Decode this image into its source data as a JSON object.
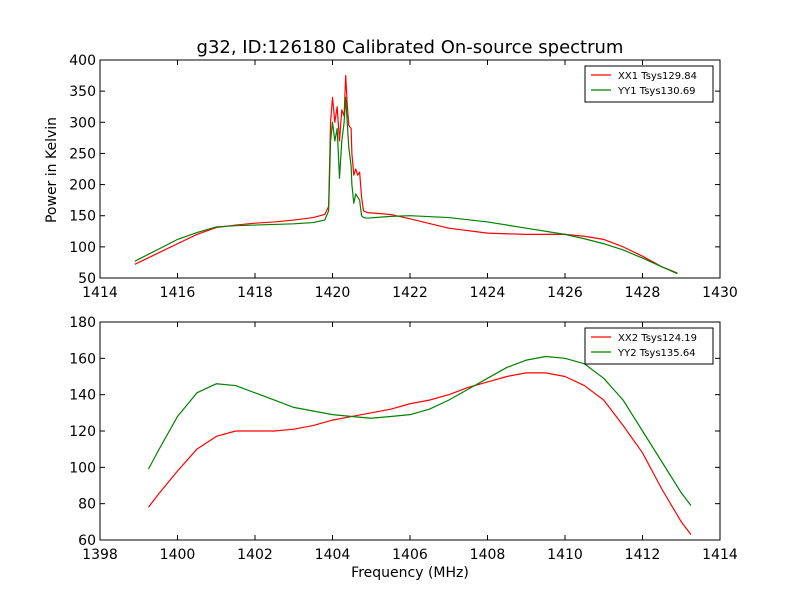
{
  "colors": {
    "red": "#ff0000",
    "green": "#008000"
  },
  "chart_data": [
    {
      "type": "line",
      "title": "g32, ID:126180 Calibrated On-source spectrum",
      "xlabel": "",
      "ylabel": "Power in Kelvin",
      "xlim": [
        1414,
        1430
      ],
      "ylim": [
        50,
        400
      ],
      "xticks": [
        "1414",
        "1416",
        "1418",
        "1420",
        "1422",
        "1424",
        "1426",
        "1428",
        "1430"
      ],
      "yticks": [
        "50",
        "100",
        "150",
        "200",
        "250",
        "300",
        "350",
        "400"
      ],
      "legend_position": "top-right",
      "series": [
        {
          "name": "XX1 Tsys129.84",
          "color": "#ff0000",
          "points": [
            [
              1414.9,
              72
            ],
            [
              1415.5,
              90
            ],
            [
              1416,
              105
            ],
            [
              1416.5,
              120
            ],
            [
              1417,
              131
            ],
            [
              1417.5,
              135
            ],
            [
              1418,
              138
            ],
            [
              1418.5,
              140
            ],
            [
              1419,
              143
            ],
            [
              1419.5,
              147
            ],
            [
              1419.8,
              152
            ],
            [
              1419.9,
              165
            ],
            [
              1419.95,
              300
            ],
            [
              1420.0,
              340
            ],
            [
              1420.06,
              300
            ],
            [
              1420.12,
              325
            ],
            [
              1420.18,
              270
            ],
            [
              1420.24,
              320
            ],
            [
              1420.3,
              310
            ],
            [
              1420.34,
              375
            ],
            [
              1420.38,
              330
            ],
            [
              1420.42,
              295
            ],
            [
              1420.48,
              290
            ],
            [
              1420.5,
              250
            ],
            [
              1420.55,
              215
            ],
            [
              1420.6,
              225
            ],
            [
              1420.65,
              215
            ],
            [
              1420.7,
              220
            ],
            [
              1420.75,
              180
            ],
            [
              1420.8,
              158
            ],
            [
              1420.9,
              155
            ],
            [
              1421.5,
              152
            ],
            [
              1422,
              145
            ],
            [
              1423,
              130
            ],
            [
              1424,
              122
            ],
            [
              1425,
              120
            ],
            [
              1426,
              120
            ],
            [
              1426.5,
              117
            ],
            [
              1427,
              112
            ],
            [
              1427.5,
              100
            ],
            [
              1428,
              85
            ],
            [
              1428.5,
              68
            ],
            [
              1428.9,
              58
            ]
          ]
        },
        {
          "name": "YY1 Tsys130.69",
          "color": "#008000",
          "points": [
            [
              1414.9,
              77
            ],
            [
              1415.5,
              96
            ],
            [
              1416,
              112
            ],
            [
              1416.5,
              123
            ],
            [
              1417,
              132
            ],
            [
              1417.5,
              134
            ],
            [
              1418,
              135
            ],
            [
              1418.5,
              136
            ],
            [
              1419,
              137
            ],
            [
              1419.5,
              139
            ],
            [
              1419.8,
              143
            ],
            [
              1419.9,
              158
            ],
            [
              1419.95,
              270
            ],
            [
              1420.0,
              300
            ],
            [
              1420.06,
              270
            ],
            [
              1420.12,
              290
            ],
            [
              1420.18,
              210
            ],
            [
              1420.24,
              270
            ],
            [
              1420.3,
              300
            ],
            [
              1420.34,
              340
            ],
            [
              1420.38,
              300
            ],
            [
              1420.42,
              260
            ],
            [
              1420.48,
              230
            ],
            [
              1420.5,
              200
            ],
            [
              1420.55,
              170
            ],
            [
              1420.6,
              185
            ],
            [
              1420.65,
              180
            ],
            [
              1420.7,
              175
            ],
            [
              1420.75,
              150
            ],
            [
              1420.8,
              147
            ],
            [
              1420.9,
              146
            ],
            [
              1421.5,
              149
            ],
            [
              1422,
              150
            ],
            [
              1423,
              147
            ],
            [
              1424,
              140
            ],
            [
              1425,
              130
            ],
            [
              1426,
              120
            ],
            [
              1426.5,
              113
            ],
            [
              1427,
              105
            ],
            [
              1427.5,
              95
            ],
            [
              1428,
              82
            ],
            [
              1428.5,
              68
            ],
            [
              1428.9,
              57
            ]
          ]
        }
      ]
    },
    {
      "type": "line",
      "title": "",
      "xlabel": "Frequency (MHz)",
      "ylabel": "",
      "xlim": [
        1398,
        1414
      ],
      "ylim": [
        60,
        180
      ],
      "xticks": [
        "1398",
        "1400",
        "1402",
        "1404",
        "1406",
        "1408",
        "1410",
        "1412",
        "1414"
      ],
      "yticks": [
        "60",
        "80",
        "100",
        "120",
        "140",
        "160",
        "180"
      ],
      "legend_position": "top-right",
      "series": [
        {
          "name": "XX2 Tsys124.19",
          "color": "#ff0000",
          "points": [
            [
              1399.25,
              78
            ],
            [
              1399.5,
              85
            ],
            [
              1400,
              98
            ],
            [
              1400.5,
              110
            ],
            [
              1401,
              117
            ],
            [
              1401.5,
              120
            ],
            [
              1402,
              120
            ],
            [
              1402.5,
              120
            ],
            [
              1403,
              121
            ],
            [
              1403.5,
              123
            ],
            [
              1404,
              126
            ],
            [
              1404.5,
              128
            ],
            [
              1405,
              130
            ],
            [
              1405.5,
              132
            ],
            [
              1406,
              135
            ],
            [
              1406.5,
              137
            ],
            [
              1407,
              140
            ],
            [
              1407.5,
              144
            ],
            [
              1408,
              147
            ],
            [
              1408.5,
              150
            ],
            [
              1409,
              152
            ],
            [
              1409.5,
              152
            ],
            [
              1410,
              150
            ],
            [
              1410.5,
              145
            ],
            [
              1411,
              137
            ],
            [
              1411.5,
              123
            ],
            [
              1412,
              108
            ],
            [
              1412.5,
              88
            ],
            [
              1413,
              70
            ],
            [
              1413.25,
              63
            ]
          ]
        },
        {
          "name": "YY2 Tsys135.64",
          "color": "#008000",
          "points": [
            [
              1399.25,
              99
            ],
            [
              1399.5,
              109
            ],
            [
              1400,
              128
            ],
            [
              1400.5,
              141
            ],
            [
              1401,
              146
            ],
            [
              1401.5,
              145
            ],
            [
              1402,
              141
            ],
            [
              1402.5,
              137
            ],
            [
              1403,
              133
            ],
            [
              1403.5,
              131
            ],
            [
              1404,
              129
            ],
            [
              1404.5,
              128
            ],
            [
              1405,
              127
            ],
            [
              1405.5,
              128
            ],
            [
              1406,
              129
            ],
            [
              1406.5,
              132
            ],
            [
              1407,
              137
            ],
            [
              1407.5,
              143
            ],
            [
              1408,
              149
            ],
            [
              1408.5,
              155
            ],
            [
              1409,
              159
            ],
            [
              1409.5,
              161
            ],
            [
              1410,
              160
            ],
            [
              1410.5,
              157
            ],
            [
              1411,
              149
            ],
            [
              1411.5,
              137
            ],
            [
              1412,
              120
            ],
            [
              1412.5,
              103
            ],
            [
              1413,
              86
            ],
            [
              1413.25,
              79
            ]
          ]
        }
      ]
    }
  ]
}
